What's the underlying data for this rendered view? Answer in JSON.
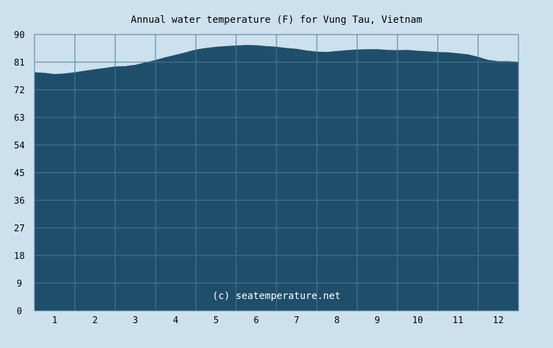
{
  "chart_data": {
    "type": "area",
    "title": "Annual water temperature (F) for Vung Tau, Vietnam",
    "xlabel": "",
    "ylabel": "",
    "watermark": "(c) seatemperature.net",
    "x_range": [
      0.5,
      12.5
    ],
    "ylim": [
      0,
      90
    ],
    "y_ticks": [
      0,
      9,
      18,
      27,
      36,
      45,
      54,
      63,
      72,
      81,
      90
    ],
    "x_ticks": [
      1,
      2,
      3,
      4,
      5,
      6,
      7,
      8,
      9,
      10,
      11,
      12
    ],
    "grid": true,
    "series": [
      {
        "x": [
          0.5,
          0.75,
          1.0,
          1.25,
          1.5,
          1.75,
          2.0,
          2.25,
          2.5,
          2.75,
          3.0,
          3.25,
          3.5,
          3.75,
          4.0,
          4.25,
          4.5,
          4.75,
          5.0,
          5.25,
          5.5,
          5.75,
          6.0,
          6.25,
          6.5,
          6.75,
          7.0,
          7.25,
          7.5,
          7.75,
          8.0,
          8.25,
          8.5,
          8.75,
          9.0,
          9.25,
          9.5,
          9.75,
          10.0,
          10.25,
          10.5,
          10.75,
          11.0,
          11.25,
          11.5,
          11.75,
          12.0,
          12.25,
          12.5
        ],
        "values": [
          77.6,
          77.4,
          77.0,
          77.2,
          77.6,
          78.1,
          78.6,
          79.0,
          79.5,
          79.6,
          80.0,
          80.8,
          81.6,
          82.5,
          83.3,
          84.1,
          85.0,
          85.5,
          85.9,
          86.1,
          86.3,
          86.5,
          86.4,
          86.1,
          85.9,
          85.5,
          85.2,
          84.7,
          84.3,
          84.2,
          84.5,
          84.8,
          85.0,
          85.1,
          85.1,
          84.9,
          84.8,
          84.9,
          84.6,
          84.4,
          84.2,
          84.1,
          83.8,
          83.4,
          82.6,
          81.6,
          81.2,
          81.2,
          81.0
        ]
      }
    ],
    "colors": {
      "background": "#cce0ee",
      "area_fill": "#1f4e6b",
      "grid": "#4c7a99",
      "axis": "#9cb8cc"
    }
  }
}
